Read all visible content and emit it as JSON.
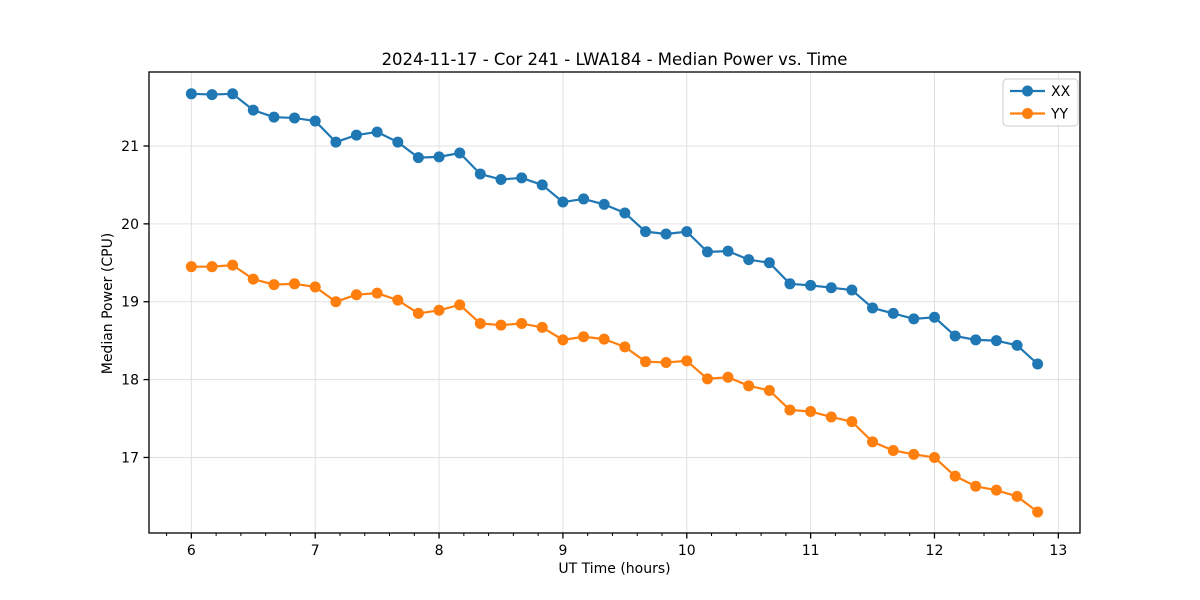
{
  "figure": {
    "background": "#ffffff",
    "spine_color": "#000000",
    "grid_color": "#e0e0e0"
  },
  "chart_data": {
    "type": "line",
    "title": "2024-11-17 - Cor 241 - LWA184 - Median Power vs. Time",
    "xlabel": "UT Time (hours)",
    "ylabel": "Median Power (CPU)",
    "xlim": [
      5.658,
      13.175
    ],
    "ylim": [
      16.03,
      21.95
    ],
    "xticks": [
      6,
      7,
      8,
      9,
      10,
      11,
      12,
      13
    ],
    "yticks": [
      17,
      18,
      19,
      20,
      21
    ],
    "x_minor_step": 0.2,
    "grid": true,
    "legend_position": "upper right",
    "marker": "o",
    "x": [
      6.0,
      6.167,
      6.333,
      6.5,
      6.667,
      6.833,
      7.0,
      7.167,
      7.333,
      7.5,
      7.667,
      7.833,
      8.0,
      8.167,
      8.333,
      8.5,
      8.667,
      8.833,
      9.0,
      9.167,
      9.333,
      9.5,
      9.667,
      9.833,
      10.0,
      10.167,
      10.333,
      10.5,
      10.667,
      10.833,
      11.0,
      11.167,
      11.333,
      11.5,
      11.667,
      11.833,
      12.0,
      12.167,
      12.333,
      12.5,
      12.667,
      12.833
    ],
    "series": [
      {
        "name": "XX",
        "color": "#1f77b4",
        "values": [
          21.67,
          21.66,
          21.67,
          21.46,
          21.37,
          21.36,
          21.32,
          21.05,
          21.14,
          21.18,
          21.05,
          20.85,
          20.86,
          20.91,
          20.64,
          20.57,
          20.59,
          20.5,
          20.28,
          20.32,
          20.25,
          20.14,
          19.9,
          19.87,
          19.9,
          19.64,
          19.65,
          19.54,
          19.5,
          19.23,
          19.21,
          19.18,
          19.15,
          18.92,
          18.85,
          18.78,
          18.8,
          18.56,
          18.51,
          18.5,
          18.44,
          18.2
        ]
      },
      {
        "name": "YY",
        "color": "#ff7f0e",
        "values": [
          19.45,
          19.45,
          19.47,
          19.29,
          19.22,
          19.23,
          19.19,
          19.0,
          19.09,
          19.11,
          19.02,
          18.85,
          18.89,
          18.96,
          18.72,
          18.7,
          18.72,
          18.67,
          18.51,
          18.55,
          18.52,
          18.42,
          18.23,
          18.22,
          18.24,
          18.01,
          18.03,
          17.92,
          17.86,
          17.61,
          17.59,
          17.52,
          17.46,
          17.2,
          17.09,
          17.04,
          17.0,
          16.76,
          16.63,
          16.58,
          16.5,
          16.3
        ]
      }
    ]
  }
}
